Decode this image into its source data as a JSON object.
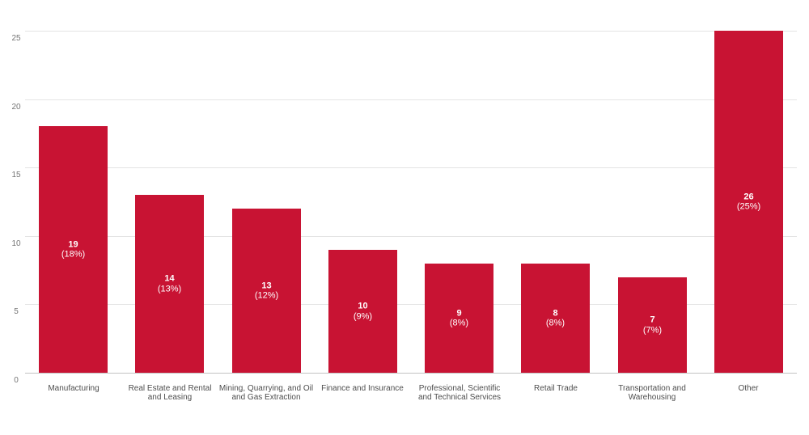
{
  "chart_data": {
    "type": "bar",
    "title": "",
    "xlabel": "",
    "ylabel": "",
    "categories": [
      "Manufacturing",
      "Real Estate and Rental and Leasing",
      "Mining, Quarrying, and Oil and Gas Extraction",
      "Finance and Insurance",
      "Professional, Scientific and Technical Services",
      "Retail Trade",
      "Transportation and Warehousing",
      "Other"
    ],
    "counts": [
      19,
      14,
      13,
      10,
      9,
      8,
      7,
      26
    ],
    "percents": [
      18,
      13,
      12,
      9,
      8,
      8,
      7,
      25
    ],
    "percent_labels": [
      "(18%)",
      "(13%)",
      "(12%)",
      "(9%)",
      "(8%)",
      "(8%)",
      "(7%)",
      "(25%)"
    ],
    "bar_height_basis": "percents",
    "ylim": [
      0,
      25
    ],
    "yticks": [
      0,
      5,
      10,
      15,
      20,
      25
    ],
    "ytick_labels": [
      "0",
      "5",
      "10",
      "15",
      "20",
      "25"
    ],
    "grid": true,
    "legend": false,
    "colors": {
      "bar": "#C81333",
      "gridline": "#E4E4E4",
      "axis_line": "#C2C2C2",
      "ytick_label": "#757575",
      "category_label": "#4D4D4D",
      "data_label": "#FFFFFF",
      "background": "#FFFFFF"
    }
  }
}
